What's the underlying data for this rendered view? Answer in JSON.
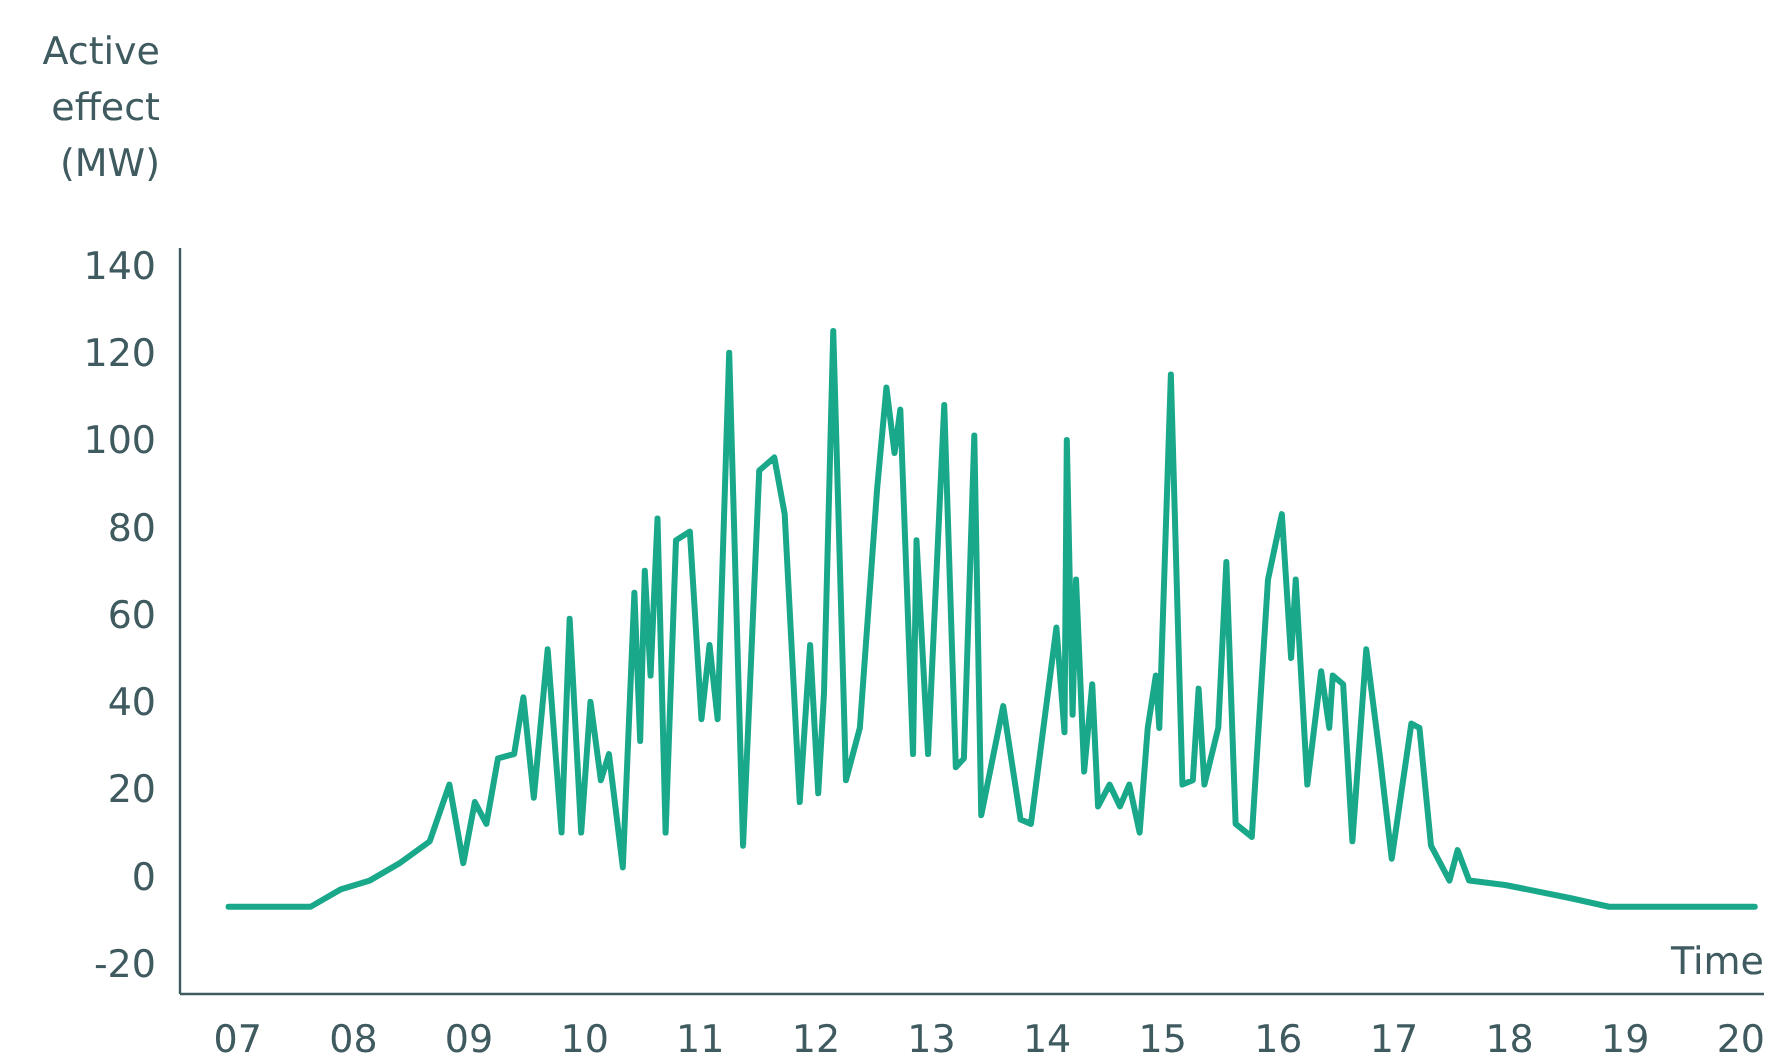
{
  "chart_data": {
    "type": "line",
    "ylabel": "Active\neffect\n(MW)",
    "xlabel": "Time",
    "xlim": [
      6.5,
      20.2
    ],
    "ylim": [
      -27,
      144
    ],
    "yticks": [
      -20,
      0,
      20,
      40,
      60,
      80,
      100,
      120,
      140
    ],
    "xticks": [
      {
        "value": 7,
        "label": "07"
      },
      {
        "value": 8,
        "label": "08"
      },
      {
        "value": 9,
        "label": "09"
      },
      {
        "value": 10,
        "label": "10"
      },
      {
        "value": 11,
        "label": "11"
      },
      {
        "value": 12,
        "label": "12"
      },
      {
        "value": 13,
        "label": "13"
      },
      {
        "value": 14,
        "label": "14"
      },
      {
        "value": 15,
        "label": "15"
      },
      {
        "value": 16,
        "label": "16"
      },
      {
        "value": 17,
        "label": "17"
      },
      {
        "value": 18,
        "label": "18"
      },
      {
        "value": 19,
        "label": "19"
      },
      {
        "value": 20,
        "label": "20"
      }
    ],
    "grid": false,
    "marker": "none",
    "line_style": "solid",
    "series": [
      {
        "color": "#1aa88a",
        "x": [
          6.92,
          7.63,
          7.89,
          8.14,
          8.4,
          8.66,
          8.83,
          8.95,
          9.05,
          9.15,
          9.25,
          9.39,
          9.47,
          9.56,
          9.68,
          9.8,
          9.87,
          9.97,
          10.05,
          10.14,
          10.21,
          10.33,
          10.43,
          10.48,
          10.52,
          10.57,
          10.63,
          10.7,
          10.79,
          10.91,
          11.01,
          11.08,
          11.15,
          11.25,
          11.37,
          11.51,
          11.64,
          11.73,
          11.86,
          11.95,
          12.02,
          12.07,
          12.15,
          12.26,
          12.38,
          12.53,
          12.61,
          12.68,
          12.73,
          12.84,
          12.87,
          12.97,
          13.11,
          13.21,
          13.28,
          13.37,
          13.43,
          13.62,
          13.77,
          13.86,
          14.08,
          14.15,
          14.17,
          14.22,
          14.25,
          14.32,
          14.39,
          14.44,
          14.54,
          14.63,
          14.71,
          14.8,
          14.87,
          14.94,
          14.97,
          15.07,
          15.17,
          15.26,
          15.31,
          15.36,
          15.48,
          15.55,
          15.63,
          15.77,
          15.91,
          16.03,
          16.11,
          16.15,
          16.25,
          16.37,
          16.44,
          16.47,
          16.56,
          16.64,
          16.76,
          16.88,
          16.98,
          17.15,
          17.22,
          17.32,
          17.48,
          17.55,
          17.65,
          17.96,
          18.52,
          18.86,
          20.12
        ],
        "values": [
          -7,
          -7,
          -3,
          -1,
          3,
          8,
          21,
          3,
          17,
          12,
          27,
          28,
          41,
          18,
          52,
          10,
          59,
          10,
          40,
          22,
          28,
          2,
          65,
          31,
          70,
          46,
          82,
          10,
          77,
          79,
          36,
          53,
          36,
          120,
          7,
          93,
          96,
          83,
          17,
          53,
          19,
          42,
          125,
          22,
          34,
          89,
          112,
          97,
          107,
          28,
          77,
          28,
          108,
          25,
          27,
          101,
          14,
          39,
          13,
          12,
          57,
          33,
          100,
          37,
          68,
          24,
          44,
          16,
          21,
          16,
          21,
          10,
          34,
          46,
          34,
          115,
          21,
          22,
          43,
          21,
          34,
          72,
          12,
          9,
          68,
          83,
          50,
          68,
          21,
          47,
          34,
          46,
          44,
          8,
          52,
          27,
          4,
          35,
          34,
          7,
          -1,
          6,
          -1,
          -2,
          -5,
          -7,
          -7
        ]
      }
    ]
  }
}
